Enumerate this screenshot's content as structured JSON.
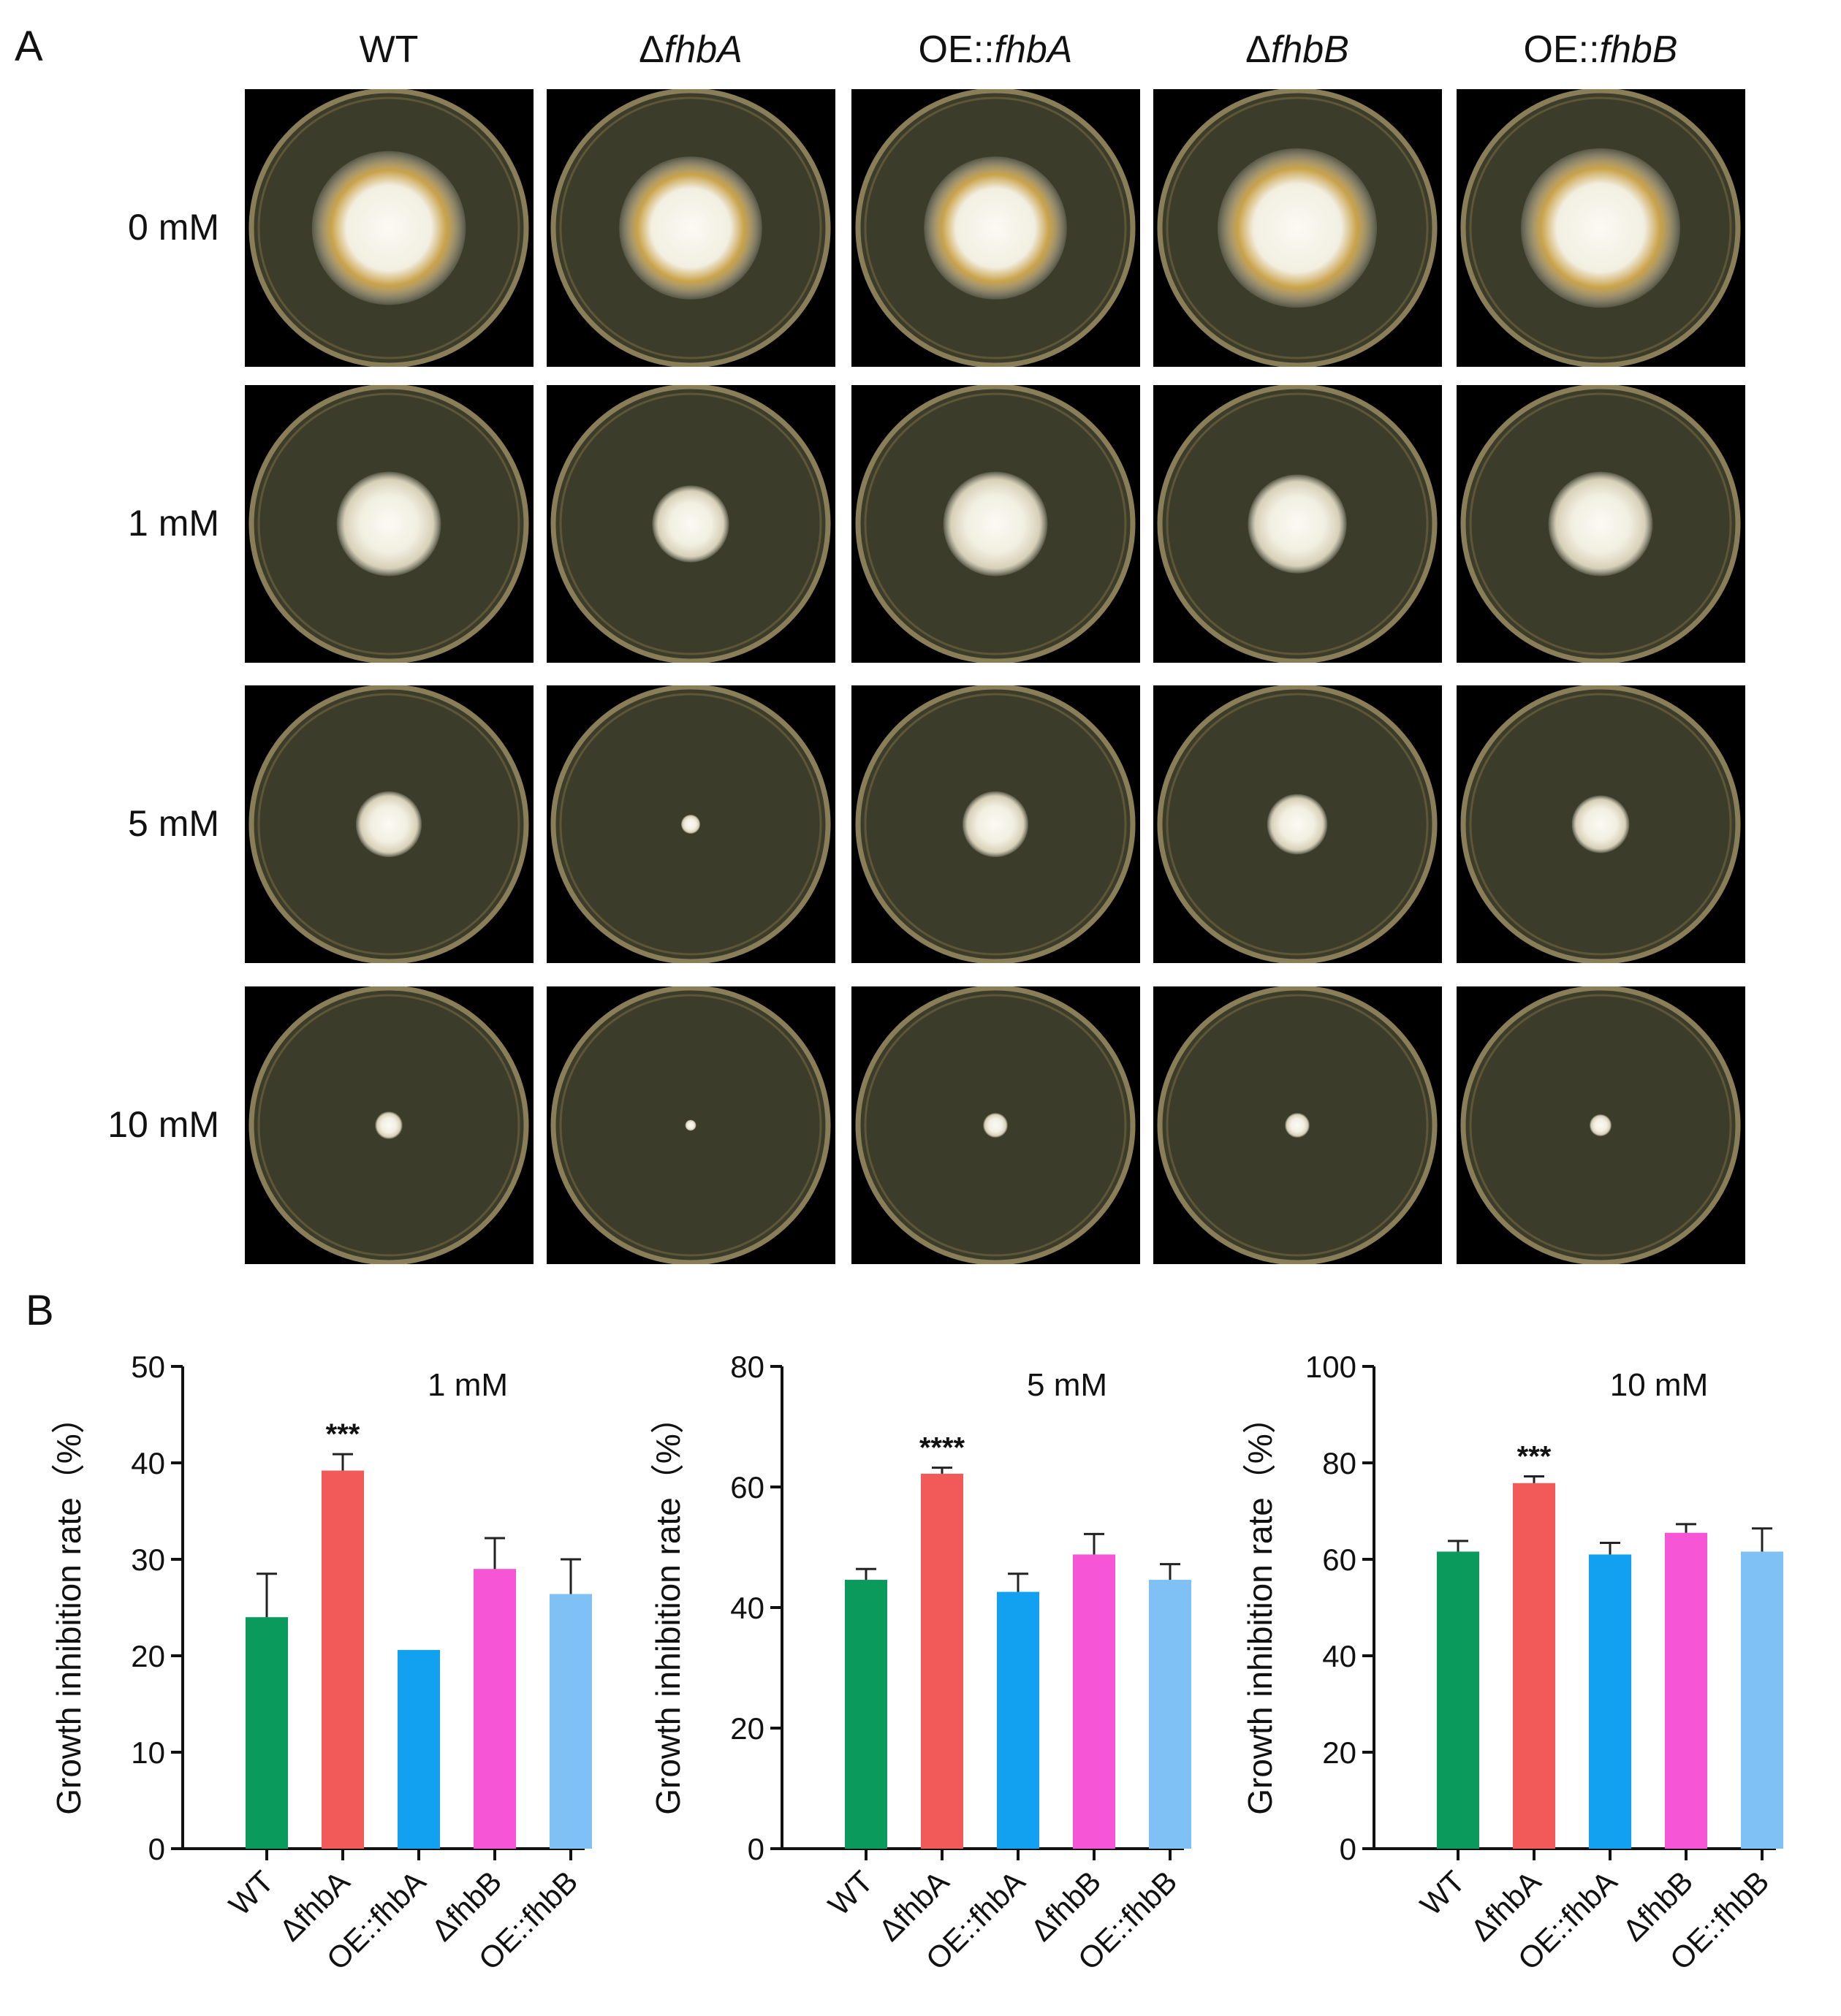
{
  "panel_a": {
    "letter": "A",
    "columns": [
      {
        "prefix": "",
        "italic": "",
        "plain": "WT"
      },
      {
        "prefix": "Δ",
        "italic": "fhbA",
        "plain": ""
      },
      {
        "prefix": "OE::",
        "italic": "fhbA",
        "plain": ""
      },
      {
        "prefix": "Δ",
        "italic": "fhbB",
        "plain": ""
      },
      {
        "prefix": "OE::",
        "italic": "fhbB",
        "plain": ""
      }
    ],
    "rows": [
      "0 mM",
      "1 mM",
      "5 mM",
      "10 mM"
    ],
    "colony_relative_size": [
      [
        0.56,
        0.52,
        0.52,
        0.58,
        0.58
      ],
      [
        0.38,
        0.28,
        0.38,
        0.36,
        0.38
      ],
      [
        0.24,
        0.07,
        0.24,
        0.22,
        0.21
      ],
      [
        0.1,
        0.04,
        0.09,
        0.09,
        0.08
      ]
    ],
    "colony_colors": {
      "plate_medium": "#3b3c2a",
      "plate_rim": "#8a7e58",
      "mycelium": "#f2efe2",
      "pigment": "#c9a24a"
    }
  },
  "panel_b": {
    "letter": "B",
    "chart_data": [
      {
        "type": "bar",
        "title": "1 mM",
        "ylabel": "Growth inhibition rate（%）",
        "categories": [
          "WT",
          "ΔfhbA",
          "OE::fhbA",
          "ΔfhbB",
          "OE::fhbB"
        ],
        "values": [
          24.0,
          39.2,
          20.6,
          29.0,
          26.4
        ],
        "errors": [
          4.5,
          1.7,
          0,
          3.2,
          3.6
        ],
        "significance": [
          "",
          "***",
          "",
          "",
          ""
        ],
        "ylim": [
          0,
          50
        ],
        "yticks": [
          0,
          10,
          20,
          30,
          40,
          50
        ]
      },
      {
        "type": "bar",
        "title": "5 mM",
        "ylabel": "Growth inhibition rate（%）",
        "categories": [
          "WT",
          "ΔfhbA",
          "OE::fhbA",
          "ΔfhbB",
          "OE::fhbB"
        ],
        "values": [
          44.6,
          62.2,
          42.6,
          48.8,
          44.6
        ],
        "errors": [
          1.8,
          1.0,
          3.0,
          3.4,
          2.6
        ],
        "significance": [
          "",
          "****",
          "",
          "",
          ""
        ],
        "ylim": [
          0,
          80
        ],
        "yticks": [
          0,
          20,
          40,
          60,
          80
        ]
      },
      {
        "type": "bar",
        "title": "10 mM",
        "ylabel": "Growth inhibition rate（%）",
        "categories": [
          "WT",
          "ΔfhbA",
          "OE::fhbA",
          "ΔfhbB",
          "OE::fhbB"
        ],
        "values": [
          61.6,
          75.8,
          61.0,
          65.5,
          61.6
        ],
        "errors": [
          2.2,
          1.4,
          2.4,
          1.8,
          4.8
        ],
        "significance": [
          "",
          "***",
          "",
          "",
          ""
        ],
        "ylim": [
          0,
          100
        ],
        "yticks": [
          0,
          20,
          40,
          60,
          80,
          100
        ]
      }
    ],
    "bar_colors": [
      "#0a9a5c",
      "#f25a5a",
      "#12a0f0",
      "#f656d6",
      "#7fc1f5"
    ]
  }
}
